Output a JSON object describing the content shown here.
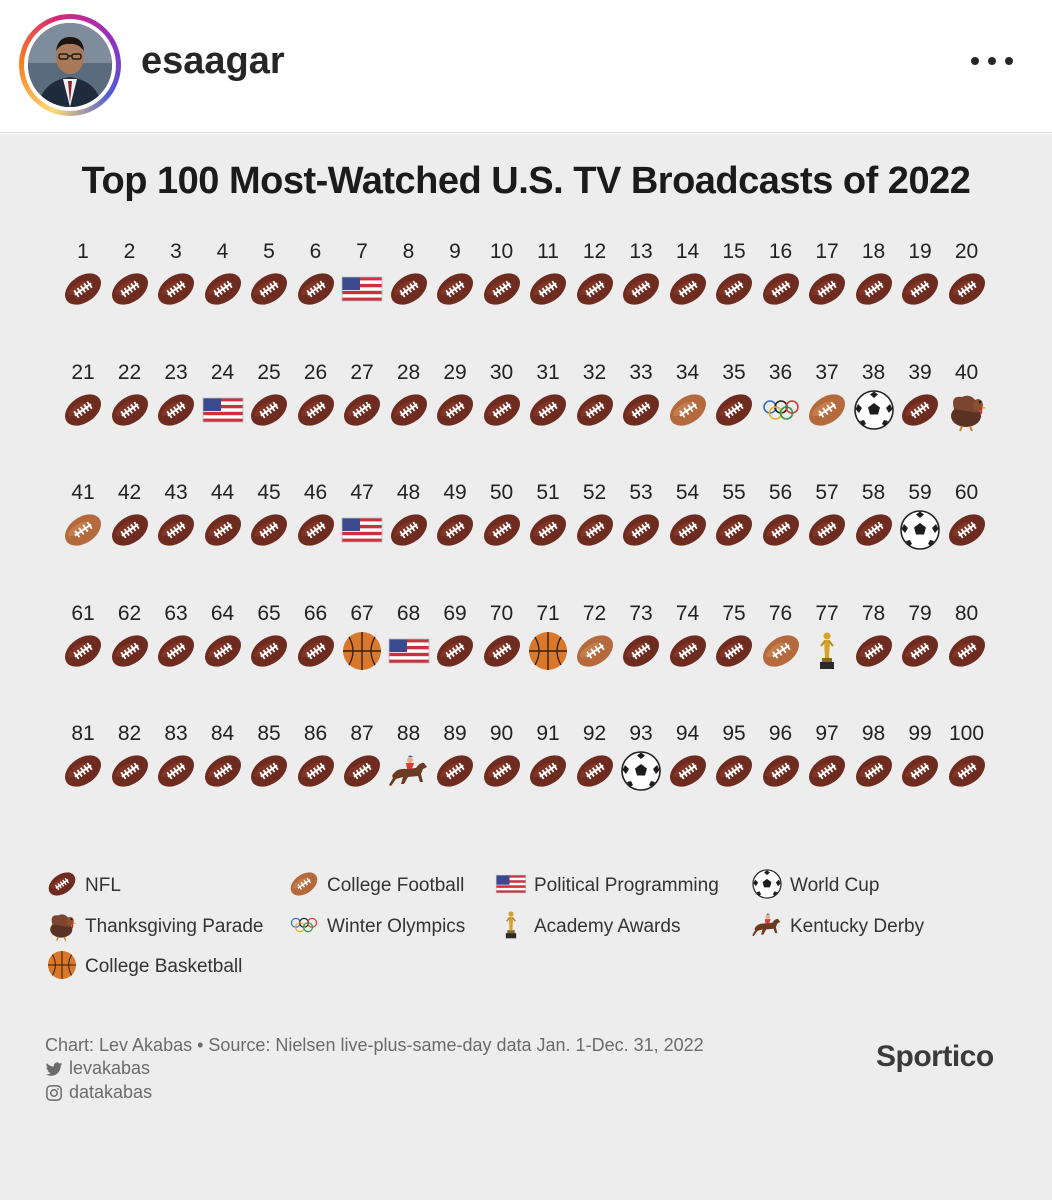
{
  "post": {
    "username": "esaagar",
    "avatar_icon": "profile-photo",
    "more_icon": "more-options-icon"
  },
  "infographic": {
    "title": "Top 100 Most-Watched U.S. TV Broadcasts of 2022",
    "brand": "Sportico",
    "credit": "Chart: Lev Akabas • Source: Nielsen live-plus-same-day data Jan. 1-Dec. 31, 2022",
    "twitter_handle": "levakabas",
    "instagram_handle": "datakabas"
  },
  "chart_data": {
    "type": "table",
    "title": "Top 100 Most-Watched U.S. TV Broadcasts of 2022",
    "ranks": [
      1,
      2,
      3,
      4,
      5,
      6,
      7,
      8,
      9,
      10,
      11,
      12,
      13,
      14,
      15,
      16,
      17,
      18,
      19,
      20,
      21,
      22,
      23,
      24,
      25,
      26,
      27,
      28,
      29,
      30,
      31,
      32,
      33,
      34,
      35,
      36,
      37,
      38,
      39,
      40,
      41,
      42,
      43,
      44,
      45,
      46,
      47,
      48,
      49,
      50,
      51,
      52,
      53,
      54,
      55,
      56,
      57,
      58,
      59,
      60,
      61,
      62,
      63,
      64,
      65,
      66,
      67,
      68,
      69,
      70,
      71,
      72,
      73,
      74,
      75,
      76,
      77,
      78,
      79,
      80,
      81,
      82,
      83,
      84,
      85,
      86,
      87,
      88,
      89,
      90,
      91,
      92,
      93,
      94,
      95,
      96,
      97,
      98,
      99,
      100
    ],
    "categories": [
      "nfl",
      "nfl",
      "nfl",
      "nfl",
      "nfl",
      "nfl",
      "politics",
      "nfl",
      "nfl",
      "nfl",
      "nfl",
      "nfl",
      "nfl",
      "nfl",
      "nfl",
      "nfl",
      "nfl",
      "nfl",
      "nfl",
      "nfl",
      "nfl",
      "nfl",
      "nfl",
      "politics",
      "nfl",
      "nfl",
      "nfl",
      "nfl",
      "nfl",
      "nfl",
      "nfl",
      "nfl",
      "nfl",
      "cfb",
      "nfl",
      "olympics",
      "cfb",
      "worldcup",
      "nfl",
      "parade",
      "cfb",
      "nfl",
      "nfl",
      "nfl",
      "nfl",
      "nfl",
      "politics",
      "nfl",
      "nfl",
      "nfl",
      "nfl",
      "nfl",
      "nfl",
      "nfl",
      "nfl",
      "nfl",
      "nfl",
      "nfl",
      "worldcup",
      "nfl",
      "nfl",
      "nfl",
      "nfl",
      "nfl",
      "nfl",
      "nfl",
      "cbb",
      "politics",
      "nfl",
      "nfl",
      "cbb",
      "cfb",
      "nfl",
      "nfl",
      "nfl",
      "cfb",
      "oscars",
      "nfl",
      "nfl",
      "nfl",
      "nfl",
      "nfl",
      "nfl",
      "nfl",
      "nfl",
      "nfl",
      "nfl",
      "derby",
      "nfl",
      "nfl",
      "nfl",
      "nfl",
      "worldcup",
      "nfl",
      "nfl",
      "nfl",
      "nfl",
      "nfl",
      "nfl",
      "nfl"
    ],
    "legend": [
      {
        "key": "nfl",
        "label": "NFL",
        "icon": "nfl-football-icon"
      },
      {
        "key": "cfb",
        "label": "College Football",
        "icon": "college-football-icon"
      },
      {
        "key": "politics",
        "label": "Political Programming",
        "icon": "us-flag-icon"
      },
      {
        "key": "worldcup",
        "label": "World Cup",
        "icon": "soccer-ball-icon"
      },
      {
        "key": "parade",
        "label": "Thanksgiving Parade",
        "icon": "turkey-icon"
      },
      {
        "key": "olympics",
        "label": "Winter Olympics",
        "icon": "olympic-rings-icon"
      },
      {
        "key": "oscars",
        "label": "Academy Awards",
        "icon": "oscar-statue-icon"
      },
      {
        "key": "derby",
        "label": "Kentucky Derby",
        "icon": "horse-racing-icon"
      },
      {
        "key": "cbb",
        "label": "College Basketball",
        "icon": "basketball-icon"
      }
    ]
  }
}
